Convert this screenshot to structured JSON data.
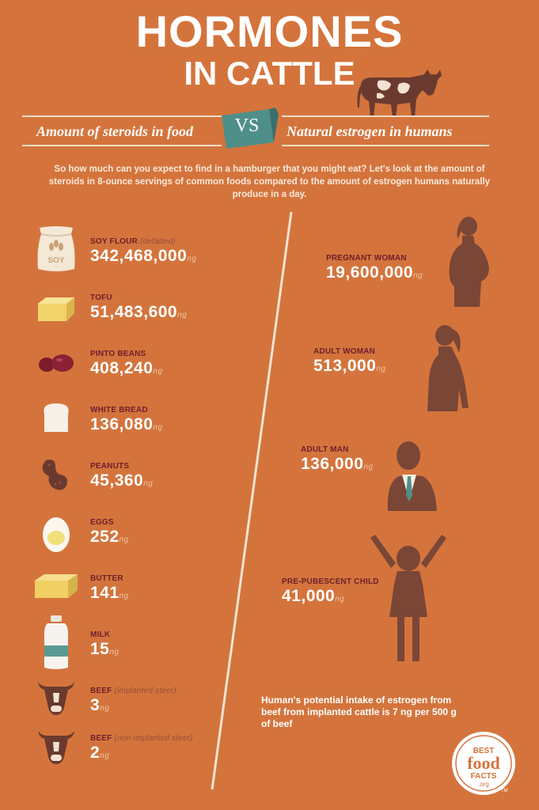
{
  "title": {
    "line1": "HORMONES",
    "line2": "IN CATTLE"
  },
  "subtitle": {
    "left": "Amount of steroids in food",
    "vs": "VS",
    "right": "Natural estrogen in humans"
  },
  "intro": "So how much can you expect to find in a hamburger that you might eat? Let's look at the amount of steroids in 8-ounce servings of common foods compared to the amount of estrogen humans naturally produce in a day.",
  "unit": "ng",
  "foods": [
    {
      "label": "SOY FLOUR",
      "note": "(defatted)",
      "value": "342,468,000",
      "icon": "soy-flour-bag-icon"
    },
    {
      "label": "TOFU",
      "note": "",
      "value": "51,483,600",
      "icon": "tofu-icon"
    },
    {
      "label": "PINTO BEANS",
      "note": "",
      "value": "408,240",
      "icon": "pinto-beans-icon"
    },
    {
      "label": "WHITE BREAD",
      "note": "",
      "value": "136,080",
      "icon": "bread-slice-icon"
    },
    {
      "label": "PEANUTS",
      "note": "",
      "value": "45,360",
      "icon": "peanut-icon"
    },
    {
      "label": "EGGS",
      "note": "",
      "value": "252",
      "icon": "egg-icon"
    },
    {
      "label": "BUTTER",
      "note": "",
      "value": "141",
      "icon": "butter-icon"
    },
    {
      "label": "MILK",
      "note": "",
      "value": "15",
      "icon": "milk-jug-icon"
    },
    {
      "label": "BEEF",
      "note": "(implanted steer)",
      "value": "3",
      "icon": "steer-head-icon"
    },
    {
      "label": "BEEF",
      "note": "(non-implanted steer)",
      "value": "2",
      "icon": "steer-head-icon"
    }
  ],
  "humans": [
    {
      "label": "PREGNANT WOMAN",
      "value": "19,600,000",
      "icon": "pregnant-woman-silhouette-icon"
    },
    {
      "label": "ADULT WOMAN",
      "value": "513,000",
      "icon": "adult-woman-silhouette-icon"
    },
    {
      "label": "ADULT MAN",
      "value": "136,000",
      "icon": "adult-man-silhouette-icon"
    },
    {
      "label": "PRE-PUBESCENT CHILD",
      "value": "41,000",
      "icon": "child-silhouette-icon"
    }
  ],
  "footnote": "Human's potential intake of estrogen from beef from implanted cattle is 7 ng per 500 g of beef",
  "logo": {
    "line1": "BEST",
    "line2": "food",
    "line3": "FACTS",
    "line4": ".org",
    "tm": "TM"
  },
  "colors": {
    "background": "#d4743c",
    "label": "#6e1e2e",
    "silhouette": "#7a4636",
    "vs_badge": "#4f8f8a"
  }
}
